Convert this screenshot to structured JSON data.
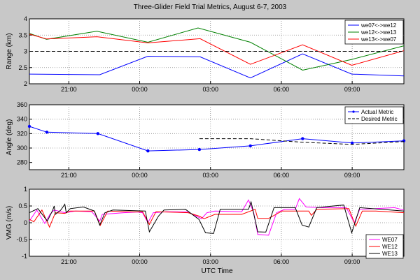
{
  "title": "Three-Glider Field Trial Metrics, August 6-7, 2003",
  "xlabel": "UTC Time",
  "chart_data": [
    {
      "type": "line",
      "ylabel": "Range (km)",
      "ylim": [
        2,
        4
      ],
      "yticks": [
        "2",
        "2.5",
        "3",
        "3.5",
        "4"
      ],
      "ytick_values": [
        2,
        2.5,
        3,
        3.5,
        4
      ],
      "xlim": [
        19.33,
        35.19
      ],
      "xticks": [
        "21:00",
        "00:00",
        "03:00",
        "06:00",
        "09:00"
      ],
      "xtick_values": [
        21,
        24,
        27,
        30,
        33
      ],
      "grid": true,
      "legend": "top-right",
      "series": [
        {
          "name": "we07<->we12",
          "color": "#0000ff",
          "dash": false,
          "markers": false,
          "x": [
            19.33,
            22.31,
            24.35,
            26.56,
            28.69,
            30.9,
            32.98,
            35.19
          ],
          "y": [
            2.3,
            2.28,
            2.85,
            2.83,
            2.18,
            2.92,
            2.3,
            2.24
          ]
        },
        {
          "name": "we12<->we13",
          "color": "#008000",
          "dash": false,
          "markers": false,
          "x": [
            19.33,
            20.06,
            22.19,
            24.35,
            26.47,
            28.69,
            30.9,
            32.98,
            35.19
          ],
          "y": [
            3.55,
            3.37,
            3.62,
            3.28,
            3.72,
            3.28,
            2.42,
            2.75,
            3.17
          ]
        },
        {
          "name": "we13<->we07",
          "color": "#ff0000",
          "dash": false,
          "markers": false,
          "x": [
            19.33,
            20.06,
            22.19,
            24.35,
            26.56,
            28.69,
            30.9,
            32.98,
            35.19
          ],
          "y": [
            3.53,
            3.38,
            3.45,
            3.26,
            3.39,
            2.6,
            3.2,
            2.57,
            3.02
          ]
        },
        {
          "name": "",
          "color": "#000000",
          "dash": true,
          "markers": false,
          "legend": false,
          "x": [
            19.33,
            35.19
          ],
          "y": [
            3,
            3
          ]
        }
      ]
    },
    {
      "type": "line",
      "ylabel": "Angle (deg)",
      "ylim": [
        270,
        360
      ],
      "yticks": [
        "280",
        "300",
        "320",
        "340",
        "360"
      ],
      "ytick_values": [
        280,
        300,
        320,
        340,
        360
      ],
      "xlim": [
        19.33,
        35.19
      ],
      "xticks": [
        "21:00",
        "00:00",
        "03:00",
        "06:00",
        "09:00"
      ],
      "xtick_values": [
        21,
        24,
        27,
        30,
        33
      ],
      "grid": true,
      "legend": "top-right",
      "series": [
        {
          "name": "Actual Metric",
          "color": "#0000ff",
          "dash": false,
          "markers": true,
          "x": [
            19.33,
            20.07,
            22.23,
            24.35,
            26.53,
            28.69,
            30.9,
            33.0,
            35.19
          ],
          "y": [
            330,
            322,
            320,
            296,
            298,
            303,
            313,
            307,
            310
          ]
        },
        {
          "name": "Desired Metric",
          "color": "#000000",
          "dash": true,
          "markers": false,
          "x": [
            26.53,
            28.69,
            30.9,
            33.0,
            35.19
          ],
          "y": [
            313,
            313,
            308,
            305,
            309
          ]
        }
      ]
    },
    {
      "type": "line",
      "ylabel": "VMG (m/s)",
      "ylim": [
        -1,
        1
      ],
      "yticks": [
        "-1",
        "-0.5",
        "0",
        "0.5",
        "1"
      ],
      "ytick_values": [
        -1,
        -0.5,
        0,
        0.5,
        1
      ],
      "xlim": [
        19.33,
        35.19
      ],
      "xticks": [
        "21:00",
        "00:00",
        "03:00",
        "06:00",
        "09:00"
      ],
      "xtick_values": [
        21,
        24,
        27,
        30,
        33
      ],
      "grid": true,
      "legend": "bottom-right",
      "series": [
        {
          "name": "WE07",
          "color": "#ff00ff",
          "dash": false,
          "markers": false,
          "x": [
            19.33,
            19.64,
            19.98,
            20.2,
            20.38,
            20.83,
            21.28,
            21.97,
            22.31,
            22.42,
            23.33,
            23.9,
            24.12,
            24.35,
            24.58,
            25.14,
            26.05,
            26.62,
            26.85,
            27.19,
            28.32,
            28.61,
            28.83,
            29.0,
            29.46,
            29.8,
            30.14,
            30.59,
            30.76,
            31.05,
            31.73,
            32.75,
            33.09,
            33.32,
            34.0,
            34.79,
            35.19
          ],
          "y": [
            0.05,
            0.38,
            -0.02,
            0.25,
            0.38,
            0.3,
            0.35,
            0.33,
            0.05,
            0.25,
            0.3,
            0.32,
            0.3,
            0.0,
            0.3,
            0.33,
            0.32,
            0.12,
            0.3,
            0.35,
            0.33,
            0.68,
            0.3,
            -0.35,
            -0.37,
            0.3,
            0.4,
            0.4,
            0.72,
            0.47,
            0.45,
            0.45,
            0.0,
            0.4,
            0.42,
            0.45,
            0.38
          ]
        },
        {
          "name": "WE12",
          "color": "#ff0000",
          "dash": false,
          "markers": false,
          "x": [
            19.33,
            19.52,
            19.86,
            20.18,
            20.43,
            20.83,
            21.06,
            21.51,
            22.08,
            22.33,
            22.65,
            23.78,
            24.12,
            24.41,
            24.69,
            26.05,
            26.51,
            26.73,
            27.19,
            28.32,
            28.89,
            29.0,
            29.46,
            30.03,
            31.16,
            31.27,
            31.5,
            32.86,
            33.15,
            33.43,
            34.0,
            35.19
          ],
          "y": [
            0.1,
            0.03,
            0.38,
            -0.13,
            0.3,
            0.28,
            0.35,
            0.35,
            0.35,
            -0.08,
            0.35,
            0.32,
            0.33,
            -0.05,
            0.33,
            0.3,
            0.2,
            0.12,
            0.25,
            0.25,
            0.4,
            0.13,
            0.13,
            0.35,
            0.35,
            0.22,
            0.4,
            0.42,
            -0.1,
            0.35,
            0.35,
            0.3
          ]
        },
        {
          "name": "WE13",
          "color": "#000000",
          "dash": false,
          "markers": false,
          "x": [
            19.33,
            19.69,
            20.09,
            20.32,
            20.38,
            20.43,
            20.66,
            20.83,
            20.89,
            21.06,
            21.62,
            22.08,
            22.31,
            22.53,
            22.87,
            24.24,
            24.41,
            24.8,
            25.03,
            25.94,
            26.51,
            26.79,
            27.13,
            27.41,
            27.75,
            28.61,
            28.72,
            29.0,
            29.34,
            29.69,
            30.59,
            30.88,
            31.16,
            31.5,
            32.64,
            32.98,
            33.32,
            35.19
          ],
          "y": [
            0.3,
            0.42,
            0.05,
            0.38,
            0.5,
            0.25,
            0.38,
            0.55,
            0.3,
            0.42,
            0.47,
            0.35,
            -0.07,
            0.3,
            0.38,
            0.35,
            -0.27,
            0.2,
            0.38,
            0.4,
            0.1,
            -0.3,
            -0.32,
            0.4,
            0.4,
            0.4,
            0.62,
            -0.27,
            -0.28,
            0.45,
            0.45,
            -0.07,
            -0.13,
            0.45,
            0.53,
            -0.3,
            0.45,
            0.35
          ]
        }
      ]
    }
  ]
}
